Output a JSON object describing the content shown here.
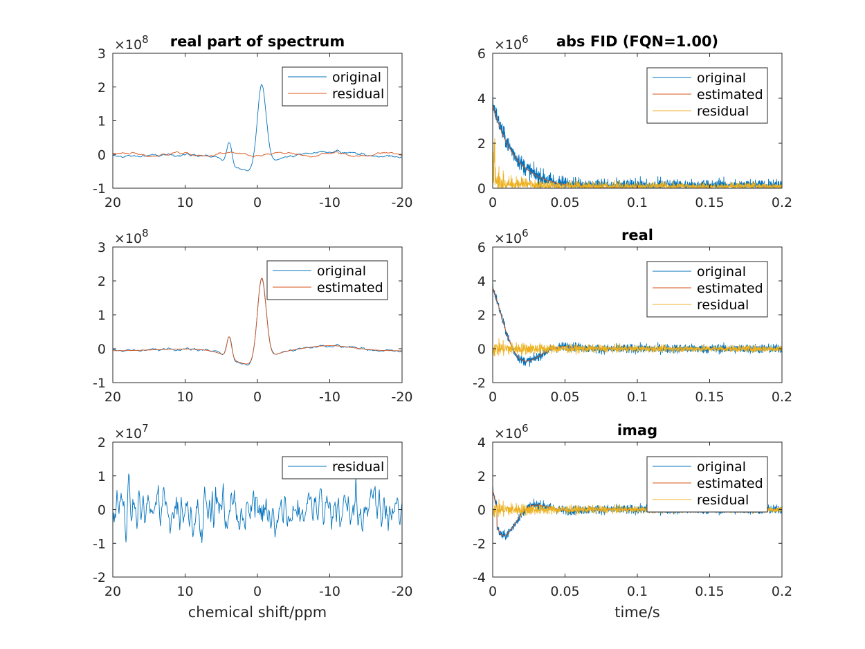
{
  "colors": {
    "blue": "#0072bd",
    "orange": "#d95319",
    "yellow": "#edb120",
    "axis": "#262626"
  },
  "chart_data": [
    {
      "type": "line",
      "title": "real part of spectrum",
      "xlabel": "",
      "exponent_label": "×10",
      "exponent_power": "8",
      "xlim": [
        20,
        -20
      ],
      "xreverse": true,
      "ylim": [
        -1,
        3
      ],
      "xticks": [
        20,
        10,
        0,
        -10,
        -20
      ],
      "xtick_labels": [
        "20",
        "10",
        "0",
        "-10",
        "-20"
      ],
      "yticks": [
        -1,
        0,
        1,
        2,
        3
      ],
      "ytick_labels": [
        "-1",
        "0",
        "1",
        "2",
        "3"
      ],
      "legend": "top-right",
      "series": [
        {
          "name": "original",
          "color": "#0072bd",
          "kind": "spec_orig"
        },
        {
          "name": "residual",
          "color": "#d95319",
          "kind": "spec_res_small"
        }
      ]
    },
    {
      "type": "line",
      "title": "abs FID (FQN=1.00)",
      "xlabel": "",
      "exponent_label": "×10",
      "exponent_power": "6",
      "xlim": [
        0,
        0.2
      ],
      "xreverse": false,
      "ylim": [
        0,
        6
      ],
      "xticks": [
        0,
        0.05,
        0.1,
        0.15,
        0.2
      ],
      "xtick_labels": [
        "0",
        "0.05",
        "0.1",
        "0.15",
        "0.2"
      ],
      "yticks": [
        0,
        2,
        4,
        6
      ],
      "ytick_labels": [
        "0",
        "2",
        "4",
        "6"
      ],
      "legend": "top-right",
      "series": [
        {
          "name": "original",
          "color": "#0072bd",
          "kind": "fid_abs_orig"
        },
        {
          "name": "estimated",
          "color": "#d95319",
          "kind": "fid_abs_est"
        },
        {
          "name": "residual",
          "color": "#edb120",
          "kind": "fid_abs_res"
        }
      ]
    },
    {
      "type": "line",
      "title": "",
      "xlabel": "",
      "exponent_label": "×10",
      "exponent_power": "8",
      "xlim": [
        20,
        -20
      ],
      "xreverse": true,
      "ylim": [
        -1,
        3
      ],
      "xticks": [
        20,
        10,
        0,
        -10,
        -20
      ],
      "xtick_labels": [
        "20",
        "10",
        "0",
        "-10",
        "-20"
      ],
      "yticks": [
        -1,
        0,
        1,
        2,
        3
      ],
      "ytick_labels": [
        "-1",
        "0",
        "1",
        "2",
        "3"
      ],
      "legend": "top-right",
      "series": [
        {
          "name": "original",
          "color": "#0072bd",
          "kind": "spec_orig"
        },
        {
          "name": "estimated",
          "color": "#d95319",
          "kind": "spec_est"
        }
      ]
    },
    {
      "type": "line",
      "title": "real",
      "xlabel": "",
      "exponent_label": "×10",
      "exponent_power": "6",
      "xlim": [
        0,
        0.2
      ],
      "xreverse": false,
      "ylim": [
        -2,
        6
      ],
      "xticks": [
        0,
        0.05,
        0.1,
        0.15,
        0.2
      ],
      "xtick_labels": [
        "0",
        "0.05",
        "0.1",
        "0.15",
        "0.2"
      ],
      "yticks": [
        -2,
        0,
        2,
        4,
        6
      ],
      "ytick_labels": [
        "-2",
        "0",
        "2",
        "4",
        "6"
      ],
      "legend": "top-right",
      "series": [
        {
          "name": "original",
          "color": "#0072bd",
          "kind": "fid_real_orig"
        },
        {
          "name": "estimated",
          "color": "#d95319",
          "kind": "fid_real_est"
        },
        {
          "name": "residual",
          "color": "#edb120",
          "kind": "fid_res"
        }
      ]
    },
    {
      "type": "line",
      "title": "",
      "xlabel": "chemical shift/ppm",
      "exponent_label": "×10",
      "exponent_power": "7",
      "xlim": [
        20,
        -20
      ],
      "xreverse": true,
      "ylim": [
        -2,
        2
      ],
      "xticks": [
        20,
        10,
        0,
        -10,
        -20
      ],
      "xtick_labels": [
        "20",
        "10",
        "0",
        "-10",
        "-20"
      ],
      "yticks": [
        -2,
        -1,
        0,
        1,
        2
      ],
      "ytick_labels": [
        "-2",
        "-1",
        "0",
        "1",
        "2"
      ],
      "legend": "top-right",
      "series": [
        {
          "name": "residual",
          "color": "#0072bd",
          "kind": "spec_res_big"
        }
      ]
    },
    {
      "type": "line",
      "title": "imag",
      "xlabel": "time/s",
      "exponent_label": "×10",
      "exponent_power": "6",
      "xlim": [
        0,
        0.2
      ],
      "xreverse": false,
      "ylim": [
        -4,
        4
      ],
      "xticks": [
        0,
        0.05,
        0.1,
        0.15,
        0.2
      ],
      "xtick_labels": [
        "0",
        "0.05",
        "0.1",
        "0.15",
        "0.2"
      ],
      "yticks": [
        -4,
        -2,
        0,
        2,
        4
      ],
      "ytick_labels": [
        "-4",
        "-2",
        "0",
        "2",
        "4"
      ],
      "legend": "top-right",
      "series": [
        {
          "name": "original",
          "color": "#0072bd",
          "kind": "fid_imag_orig"
        },
        {
          "name": "estimated",
          "color": "#d95319",
          "kind": "fid_imag_est"
        },
        {
          "name": "residual",
          "color": "#edb120",
          "kind": "fid_res"
        }
      ]
    }
  ]
}
